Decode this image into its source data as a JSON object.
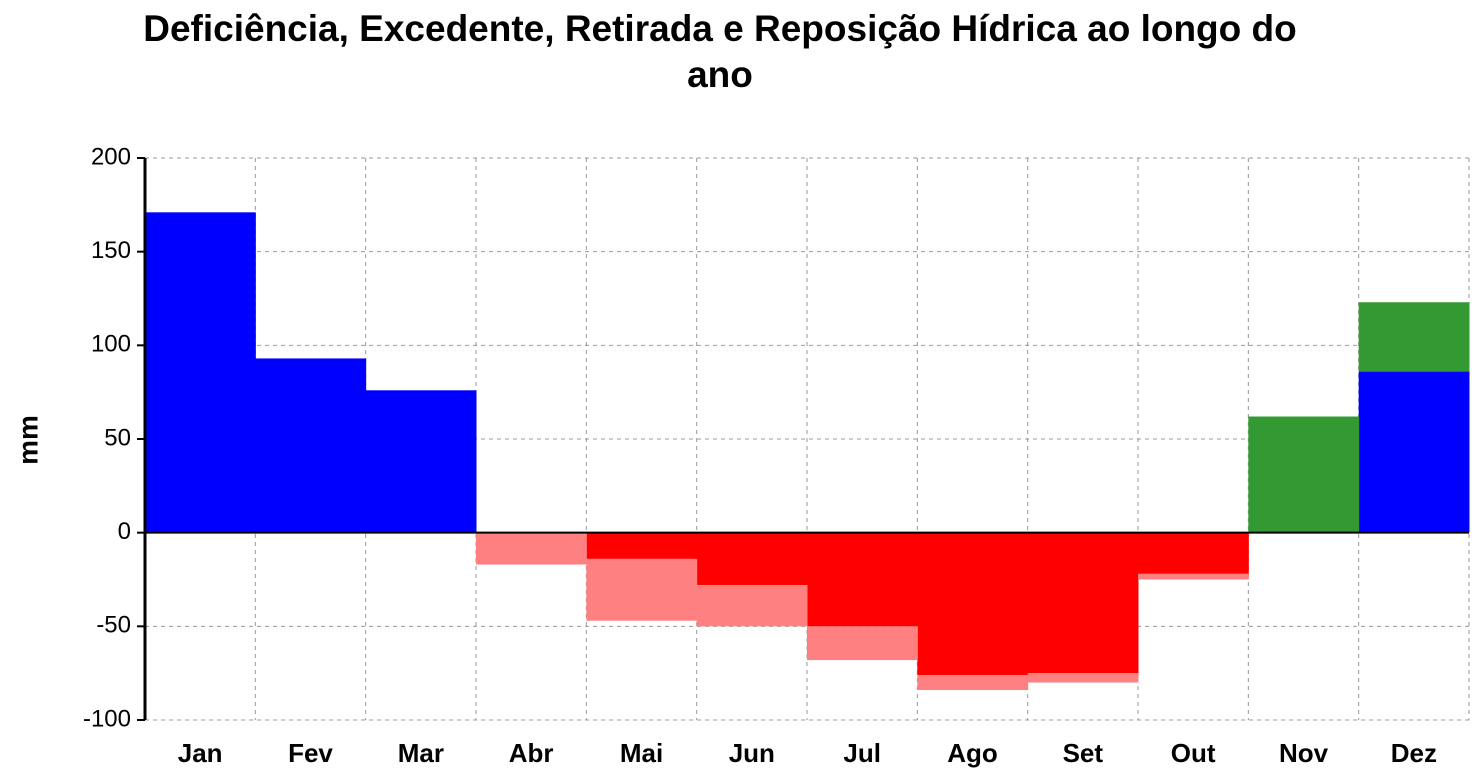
{
  "chart_data": {
    "type": "bar",
    "stacked": true,
    "title": "Deficiência, Excedente, Retirada e Reposição Hídrica ao longo do ano",
    "ylabel": "mm",
    "categories": [
      "Jan",
      "Fev",
      "Mar",
      "Abr",
      "Mai",
      "Jun",
      "Jul",
      "Ago",
      "Set",
      "Out",
      "Nov",
      "Dez"
    ],
    "series": [
      {
        "color": "#0000ff",
        "values": [
          171,
          93,
          76,
          0,
          0,
          0,
          0,
          0,
          0,
          0,
          0,
          86
        ]
      },
      {
        "color": "#339933",
        "values": [
          0,
          0,
          0,
          0,
          0,
          0,
          0,
          0,
          0,
          0,
          62,
          37
        ]
      },
      {
        "color": "#ff0000",
        "values": [
          0,
          0,
          0,
          0,
          -14,
          -28,
          -50,
          -76,
          -75,
          -22,
          0,
          0
        ]
      },
      {
        "color": "#ff8080",
        "values": [
          0,
          0,
          0,
          -17,
          -33,
          -22,
          -18,
          -8,
          -5,
          -3,
          0,
          0
        ]
      }
    ],
    "ylim": [
      -100,
      200
    ],
    "yticks": [
      -100,
      -50,
      0,
      50,
      100,
      150,
      200
    ],
    "grid": true
  }
}
